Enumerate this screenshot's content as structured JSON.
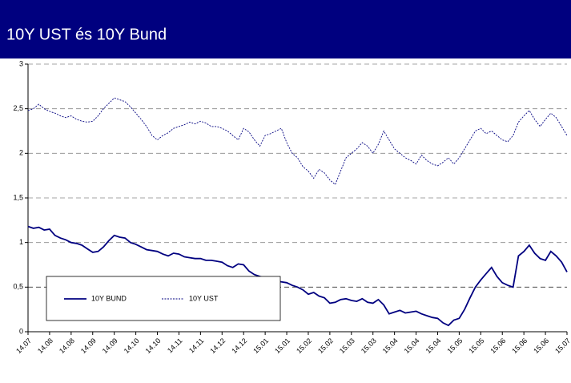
{
  "chart_data": {
    "type": "line",
    "title": "10Y UST és 10Y Bund",
    "categories": [
      "14.07",
      null,
      null,
      null,
      "14.08",
      null,
      null,
      null,
      "14.08",
      null,
      null,
      null,
      "14.09",
      null,
      null,
      null,
      "14.09",
      null,
      null,
      null,
      "14.10",
      null,
      null,
      null,
      "14.10",
      null,
      null,
      null,
      "14.11",
      null,
      null,
      null,
      "14.11",
      null,
      null,
      null,
      "14.12",
      null,
      null,
      null,
      "14.12",
      null,
      null,
      null,
      "15.01",
      null,
      null,
      null,
      "15.01",
      null,
      null,
      null,
      "15.02",
      null,
      null,
      null,
      "15.02",
      null,
      null,
      null,
      "15.03",
      null,
      null,
      null,
      "15.03",
      null,
      null,
      null,
      "15.04",
      null,
      null,
      null,
      "15.04",
      null,
      null,
      null,
      "15.04",
      null,
      null,
      null,
      "15.05",
      null,
      null,
      null,
      "15.05",
      null,
      null,
      null,
      "15.06",
      null,
      null,
      null,
      "15.06",
      null,
      null,
      null,
      "15.06",
      null,
      null,
      null,
      "15.07"
    ],
    "series": [
      {
        "name": "10Y BUND",
        "color": "#000080",
        "dashed": false,
        "values": [
          1.18,
          1.16,
          1.17,
          1.14,
          1.15,
          1.08,
          1.05,
          1.03,
          1.0,
          0.99,
          0.97,
          0.93,
          0.89,
          0.9,
          0.95,
          1.02,
          1.08,
          1.06,
          1.05,
          1.0,
          0.98,
          0.95,
          0.92,
          0.91,
          0.9,
          0.87,
          0.85,
          0.88,
          0.87,
          0.84,
          0.83,
          0.82,
          0.82,
          0.8,
          0.8,
          0.79,
          0.78,
          0.74,
          0.72,
          0.76,
          0.75,
          0.68,
          0.64,
          0.62,
          0.6,
          0.58,
          0.57,
          0.56,
          0.55,
          0.52,
          0.5,
          0.47,
          0.42,
          0.44,
          0.4,
          0.38,
          0.32,
          0.33,
          0.36,
          0.37,
          0.35,
          0.34,
          0.37,
          0.33,
          0.32,
          0.36,
          0.3,
          0.2,
          0.22,
          0.24,
          0.21,
          0.22,
          0.23,
          0.2,
          0.18,
          0.16,
          0.15,
          0.1,
          0.07,
          0.13,
          0.15,
          0.25,
          0.38,
          0.5,
          0.58,
          0.65,
          0.72,
          0.62,
          0.55,
          0.52,
          0.5,
          0.85,
          0.9,
          0.97,
          0.88,
          0.82,
          0.8,
          0.9,
          0.85,
          0.78,
          0.67
        ]
      },
      {
        "name": "10Y UST",
        "color": "#000080",
        "dashed": true,
        "values": [
          2.48,
          2.5,
          2.55,
          2.5,
          2.47,
          2.45,
          2.42,
          2.4,
          2.42,
          2.38,
          2.36,
          2.35,
          2.36,
          2.42,
          2.5,
          2.56,
          2.62,
          2.6,
          2.58,
          2.52,
          2.45,
          2.38,
          2.3,
          2.2,
          2.15,
          2.2,
          2.23,
          2.28,
          2.3,
          2.32,
          2.35,
          2.33,
          2.36,
          2.34,
          2.3,
          2.3,
          2.28,
          2.25,
          2.2,
          2.15,
          2.28,
          2.24,
          2.15,
          2.08,
          2.2,
          2.22,
          2.25,
          2.28,
          2.12,
          2.0,
          1.95,
          1.85,
          1.8,
          1.72,
          1.82,
          1.78,
          1.7,
          1.65,
          1.8,
          1.95,
          2.0,
          2.05,
          2.12,
          2.08,
          2.0,
          2.1,
          2.25,
          2.15,
          2.05,
          2.0,
          1.95,
          1.92,
          1.88,
          1.98,
          1.92,
          1.88,
          1.86,
          1.9,
          1.95,
          1.88,
          1.95,
          2.05,
          2.15,
          2.25,
          2.28,
          2.22,
          2.25,
          2.2,
          2.15,
          2.13,
          2.2,
          2.35,
          2.42,
          2.48,
          2.38,
          2.3,
          2.38,
          2.45,
          2.4,
          2.3,
          2.2
        ]
      }
    ],
    "ylim": [
      0,
      3
    ],
    "yticks": [
      0,
      {
        "value": 0.5,
        "label": "0,5"
      },
      1,
      {
        "value": 1.5,
        "label": "1,5"
      },
      2,
      {
        "value": 2.5,
        "label": "2,5"
      },
      3
    ],
    "grid": true,
    "legend": "bottom-left"
  }
}
